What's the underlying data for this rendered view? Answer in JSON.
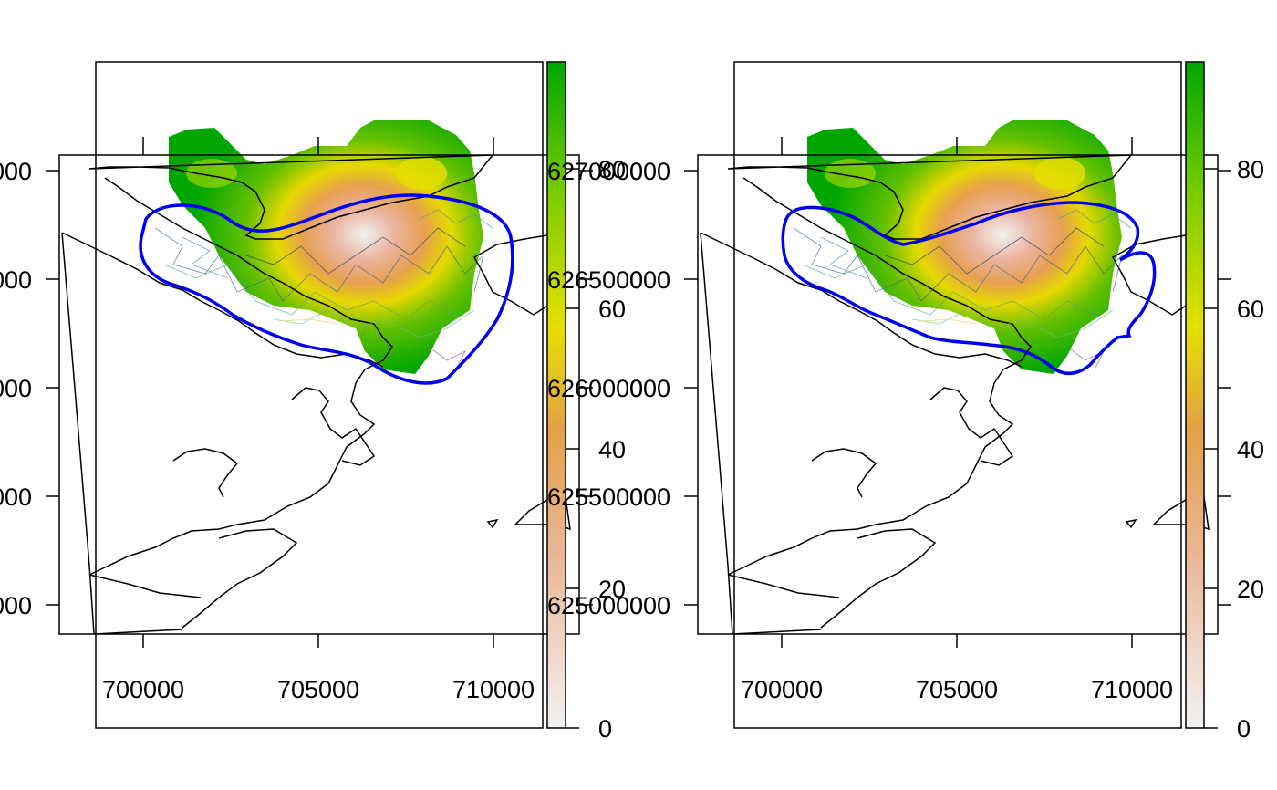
{
  "figure": {
    "panels": [
      {
        "id": "left",
        "x_ticks": [
          "700000",
          "705000",
          "710000"
        ],
        "y_ticks": [
          "6250000",
          "6255000",
          "6260000",
          "6265000",
          "6270000"
        ],
        "y_ticks_truncated": [
          "000",
          "000",
          "000",
          "000",
          "000"
        ],
        "colorbar_ticks": [
          "0",
          "20",
          "40",
          "60",
          "80"
        ],
        "contour_shape": "smooth"
      },
      {
        "id": "right",
        "x_ticks": [
          "700000",
          "705000",
          "710000"
        ],
        "y_ticks_truncated": [
          "000",
          "000",
          "000",
          "000",
          "000"
        ],
        "colorbar_ticks": [
          "0",
          "20",
          "40",
          "60",
          "80"
        ],
        "contour_shape": "coastline-clipped"
      }
    ],
    "colors": {
      "contour": "#0000ee",
      "coastline": "#000000",
      "colorbar_low": "#f2f2f2",
      "colorbar_mid_low": "#e8a47c",
      "colorbar_mid": "#e6e600",
      "colorbar_high": "#00a600"
    },
    "colorbar_range": [
      0,
      85
    ],
    "legend_placement": "right"
  }
}
